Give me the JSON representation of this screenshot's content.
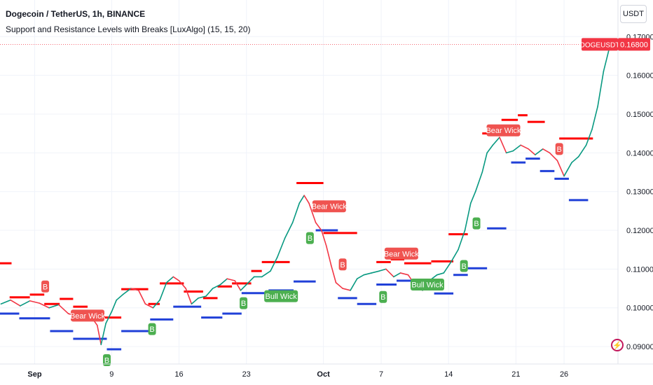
{
  "header": {
    "title": "Dogecoin / TetherUS, 1h, BINANCE",
    "indicator": "Support and Resistance Levels with Breaks [LuxAlgo] (15, 15, 20)"
  },
  "currency_button": "USDT",
  "colors": {
    "up": "#089981",
    "down": "#f23645",
    "resistance": "#ff0000",
    "support": "#2040d8",
    "bull_label": "#4caf50",
    "bear_label": "#ef5350",
    "price_tag": "#f23645"
  },
  "chart_data": {
    "type": "line",
    "symbol": "DOGEUSDT",
    "last_price": 0.168,
    "last_price_label": "0.16800",
    "y_axis_ticks": [
      "0.17000",
      "0.16000",
      "0.15000",
      "0.14000",
      "0.13000",
      "0.12000",
      "0.11000",
      "0.10000",
      "0.09000"
    ],
    "ylim": [
      0.0855,
      0.1715
    ],
    "x_axis_ticks": [
      "Sep",
      "9",
      "16",
      "23",
      "Oct",
      "7",
      "14",
      "21",
      "26"
    ],
    "x_tick_days": [
      1,
      9,
      16,
      23,
      31,
      37,
      44,
      51,
      56
    ],
    "xlim": [
      -2.6,
      61.6
    ],
    "price": [
      [
        -2.5,
        0.101
      ],
      [
        -1.5,
        0.102
      ],
      [
        -0.5,
        0.1005
      ],
      [
        0.5,
        0.1018
      ],
      [
        1.5,
        0.1012
      ],
      [
        2.5,
        0.1
      ],
      [
        3.5,
        0.1008
      ],
      [
        4.5,
        0.0985
      ],
      [
        5.5,
        0.0978
      ],
      [
        6.5,
        0.099
      ],
      [
        7.5,
        0.0955
      ],
      [
        7.9,
        0.0905
      ],
      [
        8.4,
        0.096
      ],
      [
        9.0,
        0.099
      ],
      [
        9.5,
        0.102
      ],
      [
        10.2,
        0.1035
      ],
      [
        11.0,
        0.105
      ],
      [
        11.8,
        0.1045
      ],
      [
        12.5,
        0.101
      ],
      [
        13.3,
        0.1
      ],
      [
        14.0,
        0.102
      ],
      [
        14.7,
        0.1065
      ],
      [
        15.4,
        0.108
      ],
      [
        16.0,
        0.107
      ],
      [
        16.7,
        0.105
      ],
      [
        17.3,
        0.101
      ],
      [
        18.0,
        0.1025
      ],
      [
        18.8,
        0.103
      ],
      [
        19.5,
        0.105
      ],
      [
        20.3,
        0.106
      ],
      [
        21.0,
        0.1075
      ],
      [
        21.8,
        0.107
      ],
      [
        22.4,
        0.1045
      ],
      [
        23.0,
        0.106
      ],
      [
        23.8,
        0.108
      ],
      [
        24.6,
        0.108
      ],
      [
        25.5,
        0.1095
      ],
      [
        26.2,
        0.113
      ],
      [
        27.0,
        0.118
      ],
      [
        27.8,
        0.122
      ],
      [
        28.5,
        0.127
      ],
      [
        29.0,
        0.129
      ],
      [
        29.5,
        0.127
      ],
      [
        30.2,
        0.122
      ],
      [
        30.8,
        0.12
      ],
      [
        31.3,
        0.116
      ],
      [
        31.8,
        0.111
      ],
      [
        32.3,
        0.1065
      ],
      [
        33.0,
        0.105
      ],
      [
        33.8,
        0.1045
      ],
      [
        34.5,
        0.1075
      ],
      [
        35.2,
        0.1085
      ],
      [
        36.0,
        0.109
      ],
      [
        36.8,
        0.1095
      ],
      [
        37.5,
        0.11
      ],
      [
        38.3,
        0.108
      ],
      [
        39.0,
        0.109
      ],
      [
        39.8,
        0.1085
      ],
      [
        40.5,
        0.106
      ],
      [
        41.3,
        0.1045
      ],
      [
        42.0,
        0.107
      ],
      [
        42.8,
        0.1085
      ],
      [
        43.5,
        0.109
      ],
      [
        44.3,
        0.112
      ],
      [
        45.0,
        0.115
      ],
      [
        45.7,
        0.12
      ],
      [
        46.3,
        0.127
      ],
      [
        46.8,
        0.13
      ],
      [
        47.5,
        0.135
      ],
      [
        48.0,
        0.14
      ],
      [
        48.6,
        0.142
      ],
      [
        49.3,
        0.144
      ],
      [
        50.0,
        0.14
      ],
      [
        50.7,
        0.1405
      ],
      [
        51.5,
        0.142
      ],
      [
        52.3,
        0.141
      ],
      [
        53.0,
        0.1395
      ],
      [
        53.8,
        0.141
      ],
      [
        54.5,
        0.14
      ],
      [
        55.3,
        0.138
      ],
      [
        56.0,
        0.134
      ],
      [
        56.8,
        0.1375
      ],
      [
        57.5,
        0.139
      ],
      [
        58.3,
        0.142
      ],
      [
        58.9,
        0.146
      ],
      [
        59.5,
        0.152
      ],
      [
        60.1,
        0.161
      ],
      [
        60.7,
        0.167
      ],
      [
        61.3,
        0.169
      ],
      [
        61.6,
        0.168
      ]
    ],
    "resistance_levels": [
      [
        -2.6,
        -1.4,
        0.1115
      ],
      [
        -1.6,
        0.5,
        0.1027
      ],
      [
        0.5,
        2.0,
        0.1034
      ],
      [
        2.0,
        3.6,
        0.101
      ],
      [
        3.6,
        5.0,
        0.1023
      ],
      [
        5.0,
        6.5,
        0.1003
      ],
      [
        6.5,
        8.2,
        0.099
      ],
      [
        8.2,
        10.0,
        0.0975
      ],
      [
        10.0,
        12.8,
        0.1048
      ],
      [
        12.8,
        14.0,
        0.101
      ],
      [
        14.0,
        16.5,
        0.1063
      ],
      [
        16.5,
        18.5,
        0.1042
      ],
      [
        18.5,
        20.0,
        0.1025
      ],
      [
        20.0,
        21.5,
        0.1055
      ],
      [
        21.5,
        23.5,
        0.1063
      ],
      [
        23.5,
        24.6,
        0.1095
      ],
      [
        24.6,
        27.5,
        0.1118
      ],
      [
        28.2,
        31.0,
        0.1322
      ],
      [
        31.0,
        34.5,
        0.1193
      ],
      [
        36.5,
        38.0,
        0.1118
      ],
      [
        38.0,
        39.4,
        0.1125
      ],
      [
        39.4,
        42.2,
        0.1115
      ],
      [
        42.2,
        44.5,
        0.112
      ],
      [
        44.0,
        46.0,
        0.119
      ],
      [
        47.5,
        49.5,
        0.145
      ],
      [
        49.5,
        51.2,
        0.1485
      ],
      [
        51.2,
        52.2,
        0.1497
      ],
      [
        52.2,
        54.0,
        0.148
      ],
      [
        55.5,
        59.0,
        0.1437
      ]
    ],
    "support_levels": [
      [
        -2.6,
        -0.6,
        0.0985
      ],
      [
        -0.6,
        2.6,
        0.0973
      ],
      [
        2.6,
        5.0,
        0.094
      ],
      [
        5.0,
        8.5,
        0.092
      ],
      [
        8.5,
        10.0,
        0.0893
      ],
      [
        10.0,
        13.0,
        0.094
      ],
      [
        13.0,
        15.4,
        0.097
      ],
      [
        15.4,
        18.3,
        0.1003
      ],
      [
        18.3,
        20.5,
        0.0975
      ],
      [
        20.5,
        22.5,
        0.0985
      ],
      [
        22.5,
        25.3,
        0.1038
      ],
      [
        25.3,
        27.9,
        0.1045
      ],
      [
        27.9,
        30.2,
        0.1068
      ],
      [
        30.2,
        32.5,
        0.12
      ],
      [
        32.5,
        34.5,
        0.1025
      ],
      [
        34.5,
        36.5,
        0.101
      ],
      [
        36.5,
        38.6,
        0.106
      ],
      [
        38.6,
        40.5,
        0.107
      ],
      [
        40.5,
        42.5,
        0.1055
      ],
      [
        42.5,
        44.5,
        0.1037
      ],
      [
        44.5,
        46.0,
        0.1085
      ],
      [
        46.0,
        48.0,
        0.1102
      ],
      [
        48.0,
        50.0,
        0.1205
      ],
      [
        50.5,
        52.0,
        0.1375
      ],
      [
        52.0,
        53.5,
        0.1385
      ],
      [
        53.5,
        55.0,
        0.1353
      ],
      [
        55.0,
        56.5,
        0.1333
      ],
      [
        56.5,
        58.5,
        0.1278
      ]
    ],
    "annotations": [
      {
        "text": "B",
        "kind": "bear",
        "x": 2.1,
        "y": 0.1055
      },
      {
        "text": "Bear Wick",
        "kind": "bear",
        "x": 6.5,
        "y": 0.098
      },
      {
        "text": "B",
        "kind": "bull",
        "x": 8.5,
        "y": 0.0865
      },
      {
        "text": "B",
        "kind": "bull",
        "x": 13.2,
        "y": 0.0945
      },
      {
        "text": "B",
        "kind": "bull",
        "x": 22.7,
        "y": 0.1012
      },
      {
        "text": "Bull Wick",
        "kind": "bull",
        "x": 26.6,
        "y": 0.103
      },
      {
        "text": "B",
        "kind": "bull",
        "x": 29.6,
        "y": 0.118
      },
      {
        "text": "Bear Wick",
        "kind": "bear",
        "x": 31.6,
        "y": 0.1262
      },
      {
        "text": "B",
        "kind": "bear",
        "x": 33.0,
        "y": 0.1112
      },
      {
        "text": "B",
        "kind": "bull",
        "x": 37.2,
        "y": 0.1028
      },
      {
        "text": "Bear Wick",
        "kind": "bear",
        "x": 39.1,
        "y": 0.114
      },
      {
        "text": "Bull Wick",
        "kind": "bull",
        "x": 41.8,
        "y": 0.106
      },
      {
        "text": "B",
        "kind": "bull",
        "x": 45.6,
        "y": 0.1108
      },
      {
        "text": "B",
        "kind": "bull",
        "x": 46.9,
        "y": 0.1218
      },
      {
        "text": "Bear Wick",
        "kind": "bear",
        "x": 49.7,
        "y": 0.1458
      },
      {
        "text": "B",
        "kind": "bear",
        "x": 55.5,
        "y": 0.141
      }
    ]
  }
}
